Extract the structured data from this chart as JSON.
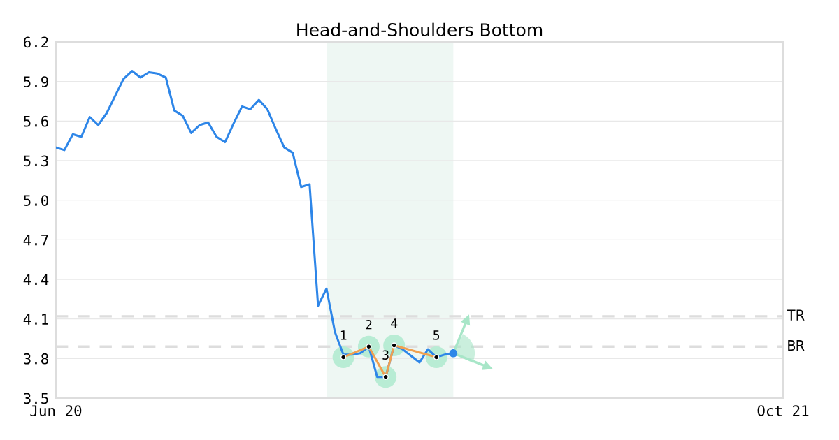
{
  "chart_data": {
    "type": "line",
    "title": "Head-and-Shoulders Bottom",
    "categories": [
      "Jun 20",
      null,
      null,
      null,
      null,
      null,
      null,
      null,
      null,
      null,
      null,
      null,
      null,
      null,
      null,
      null,
      null,
      null,
      null,
      null,
      null,
      null,
      null,
      null,
      null,
      null,
      null,
      null,
      null,
      null,
      null,
      null,
      null,
      null,
      null,
      null,
      null,
      null,
      null,
      null,
      null,
      null,
      null,
      null,
      null,
      null,
      null,
      null,
      null,
      null,
      null,
      null,
      null,
      null,
      null,
      null,
      null,
      null,
      null,
      null,
      null,
      null,
      null,
      null,
      null,
      null,
      null,
      null,
      null,
      null,
      null,
      null,
      null,
      null,
      null,
      null,
      null,
      null,
      null,
      null,
      null,
      null,
      null,
      null,
      null,
      null,
      "Oct 21"
    ],
    "ylim": [
      3.5,
      6.2
    ],
    "yticks": [
      3.5,
      3.8,
      4.1,
      4.4,
      4.7,
      {
        "value": 5.0,
        "label": "5.0"
      },
      5.3,
      5.6,
      5.9,
      6.2
    ],
    "grid": "y",
    "legend": false,
    "series": [
      {
        "color": "#2e86e8",
        "marker": "none",
        "values": [
          5.4,
          5.38,
          5.5,
          5.48,
          5.63,
          5.57,
          5.66,
          5.79,
          5.92,
          5.98,
          5.93,
          5.97,
          5.96,
          5.93,
          5.68,
          5.64,
          5.51,
          5.57,
          5.59,
          5.48,
          5.44,
          5.58,
          5.71,
          5.69,
          5.76,
          5.69,
          5.54,
          5.4,
          5.36,
          5.1,
          5.12,
          4.2,
          4.33,
          4.0,
          3.83,
          3.83,
          3.84,
          3.89,
          3.66,
          3.66,
          3.9,
          3.87,
          3.82,
          3.77,
          3.87,
          3.81,
          3.83,
          3.84,
          null,
          null,
          null,
          null,
          null,
          null,
          null,
          null,
          null,
          null,
          null,
          null,
          null,
          null,
          null,
          null,
          null,
          null,
          null,
          null,
          null,
          null,
          null,
          null,
          null,
          null,
          null,
          null,
          null,
          null,
          null,
          null,
          null,
          null,
          null,
          null,
          null,
          null,
          null
        ]
      },
      {
        "type": "scatter",
        "color": "#b8ecd4",
        "marker": "circle",
        "values": [
          null,
          null,
          null,
          null,
          null,
          null,
          null,
          null,
          null,
          null,
          null,
          null,
          null,
          null,
          null,
          null,
          null,
          null,
          null,
          null,
          null,
          null,
          null,
          null,
          null,
          null,
          null,
          null,
          null,
          null,
          null,
          null,
          null,
          null,
          3.81,
          null,
          null,
          3.89,
          null,
          3.66,
          3.9,
          null,
          null,
          null,
          null,
          3.81,
          null,
          null,
          null,
          null,
          null,
          null,
          null,
          null,
          null,
          null,
          null,
          null,
          null,
          null,
          null,
          null,
          null,
          null,
          null,
          null,
          null,
          null,
          null,
          null,
          null,
          null,
          null,
          null,
          null,
          null,
          null,
          null,
          null,
          null,
          null,
          null,
          null,
          null,
          null,
          null,
          null
        ]
      },
      {
        "type": "line",
        "color": "#f0a050",
        "marker": "circle",
        "values": [
          null,
          null,
          null,
          null,
          null,
          null,
          null,
          null,
          null,
          null,
          null,
          null,
          null,
          null,
          null,
          null,
          null,
          null,
          null,
          null,
          null,
          null,
          null,
          null,
          null,
          null,
          null,
          null,
          null,
          null,
          null,
          null,
          null,
          null,
          3.81,
          null,
          null,
          3.89,
          null,
          3.66,
          3.9,
          null,
          null,
          null,
          null,
          3.81,
          null,
          null,
          null,
          null,
          null,
          null,
          null,
          null,
          null,
          null,
          null,
          null,
          null,
          null,
          null,
          null,
          null,
          null,
          null,
          null,
          null,
          null,
          null,
          null,
          null,
          null,
          null,
          null,
          null,
          null,
          null,
          null,
          null,
          null,
          null,
          null,
          null,
          null,
          null,
          null,
          null
        ]
      },
      {
        "type": "scatter",
        "color": "#2e86e8",
        "marker": "circle",
        "values": [
          null,
          null,
          null,
          null,
          null,
          null,
          null,
          null,
          null,
          null,
          null,
          null,
          null,
          null,
          null,
          null,
          null,
          null,
          null,
          null,
          null,
          null,
          null,
          null,
          null,
          null,
          null,
          null,
          null,
          null,
          null,
          null,
          null,
          null,
          null,
          null,
          null,
          null,
          null,
          null,
          null,
          null,
          null,
          null,
          null,
          null,
          null,
          3.84,
          null,
          null,
          null,
          null,
          null,
          null,
          null,
          null,
          null,
          null,
          null,
          null,
          null,
          null,
          null,
          null,
          null,
          null,
          null,
          null,
          null,
          null,
          null,
          null,
          null,
          null,
          null,
          null,
          null,
          null,
          null,
          null,
          null,
          null,
          null,
          null,
          null,
          null,
          null
        ]
      }
    ],
    "annotations": [
      "1",
      "2",
      "3",
      "4",
      "5"
    ],
    "ref_lines": [
      {
        "axis": "y",
        "value": 4.12,
        "label": "TR",
        "color": "#dddddd",
        "line_style": "dashed"
      },
      {
        "axis": "y",
        "value": 3.89,
        "label": "BR",
        "color": "#dddddd",
        "line_style": "dashed"
      }
    ]
  }
}
